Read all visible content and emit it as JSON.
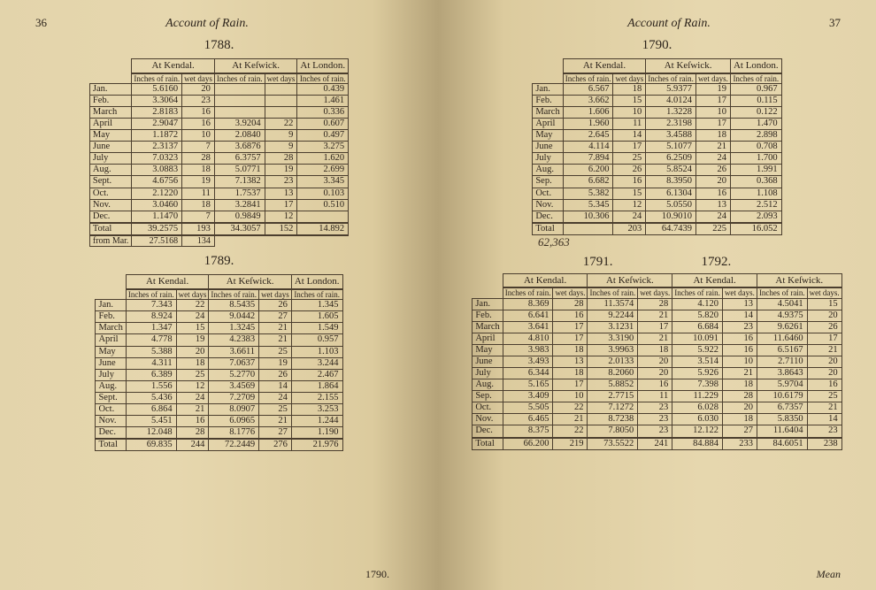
{
  "running_head": "Account of Rain.",
  "page_left_num": "36",
  "page_right_num": "37",
  "foot_left": "1790.",
  "foot_right": "Mean",
  "months": [
    "Jan.",
    "Feb.",
    "March",
    "April",
    "May",
    "June",
    "July",
    "Aug.",
    "Sept.",
    "Oct.",
    "Nov.",
    "Dec."
  ],
  "months_b": [
    "Jan.",
    "Feb.",
    "March",
    "April",
    "May",
    "June",
    "July",
    "Aug.",
    "Sep.",
    "Oct.",
    "Nov.",
    "Dec."
  ],
  "locs": {
    "kendal": "At Kendal.",
    "keswick": "At Keſwick.",
    "london": "At London."
  },
  "cols": {
    "rain": "Inches of rain.",
    "wet": "wet days",
    "rain2": "Inches of rain.",
    "wet2": "wet days.",
    "rain_s": "Inches of\nrain.",
    "wet_s": "wet\ndays."
  },
  "total_label": "Total",
  "from_mar": "from Mar.",
  "y1788": {
    "year": "1788.",
    "rows": [
      [
        "5.6160",
        "20",
        "",
        "",
        "0.439"
      ],
      [
        "3.3064",
        "23",
        "",
        "",
        "1.461"
      ],
      [
        "2.8183",
        "16",
        "",
        "",
        "0.336"
      ],
      [
        "2.9047",
        "16",
        "3.9204",
        "22",
        "0.607"
      ],
      [
        "1.1872",
        "10",
        "2.0840",
        "9",
        "0.497"
      ],
      [
        "2.3137",
        "7",
        "3.6876",
        "9",
        "3.275"
      ],
      [
        "7.0323",
        "28",
        "6.3757",
        "28",
        "1.620"
      ],
      [
        "3.0883",
        "18",
        "5.0771",
        "19",
        "2.699"
      ],
      [
        "4.6756",
        "19",
        "7.1382",
        "23",
        "3.345"
      ],
      [
        "2.1220",
        "11",
        "1.7537",
        "13",
        "0.103"
      ],
      [
        "3.0460",
        "18",
        "3.2841",
        "17",
        "0.510"
      ],
      [
        "1.1470",
        "7",
        "0.9849",
        "12",
        ""
      ]
    ],
    "total": [
      "39.2575",
      "193",
      "34.3057",
      "152",
      "14.892"
    ],
    "extra": [
      "27.5168",
      "134"
    ]
  },
  "y1789": {
    "year": "1789.",
    "rows": [
      [
        "7.343",
        "22",
        "8.5435",
        "26",
        "1.345"
      ],
      [
        "8.924",
        "24",
        "9.0442",
        "27",
        "1.605"
      ],
      [
        "1.347",
        "15",
        "1.3245",
        "21",
        "1.549"
      ],
      [
        "4.778",
        "19",
        "4.2383",
        "21",
        "0.957"
      ],
      [
        "5.388",
        "20",
        "3.6611",
        "25",
        "1.103"
      ],
      [
        "4.311",
        "18",
        "7.0637",
        "19",
        "3.244"
      ],
      [
        "6.389",
        "25",
        "5.2770",
        "26",
        "2.467"
      ],
      [
        "1.556",
        "12",
        "3.4569",
        "14",
        "1.864"
      ],
      [
        "5.436",
        "24",
        "7.2709",
        "24",
        "2.155"
      ],
      [
        "6.864",
        "21",
        "8.0907",
        "25",
        "3.253"
      ],
      [
        "5.451",
        "16",
        "6.0965",
        "21",
        "1.244"
      ],
      [
        "12.048",
        "28",
        "8.1776",
        "27",
        "1.190"
      ]
    ],
    "total": [
      "69.835",
      "244",
      "72.2449",
      "276",
      "21.976"
    ]
  },
  "y1790": {
    "year": "1790.",
    "rows": [
      [
        "6.567",
        "18",
        "5.9377",
        "19",
        "0.967"
      ],
      [
        "3.662",
        "15",
        "4.0124",
        "17",
        "0.115"
      ],
      [
        "1.606",
        "10",
        "1.3228",
        "10",
        "0.122"
      ],
      [
        "1.960",
        "11",
        "2.3198",
        "17",
        "1.470"
      ],
      [
        "2.645",
        "14",
        "3.4588",
        "18",
        "2.898"
      ],
      [
        "4.114",
        "17",
        "5.1077",
        "21",
        "0.708"
      ],
      [
        "7.894",
        "25",
        "6.2509",
        "24",
        "1.700"
      ],
      [
        "6.200",
        "26",
        "5.8524",
        "26",
        "1.991"
      ],
      [
        "6.682",
        "16",
        "8.3950",
        "20",
        "0.368"
      ],
      [
        "5.382",
        "15",
        "6.1304",
        "16",
        "1.108"
      ],
      [
        "5.345",
        "12",
        "5.0550",
        "13",
        "2.512"
      ],
      [
        "10.306",
        "24",
        "10.9010",
        "24",
        "2.093"
      ]
    ],
    "total": [
      "",
      "203",
      "64.7439",
      "225",
      "16.052"
    ],
    "ink": "62,363"
  },
  "y1791_92": {
    "year1": "1791.",
    "year2": "1792.",
    "rows": [
      [
        "8.369",
        "28",
        "11.3574",
        "28",
        "4.120",
        "13",
        "4.5041",
        "15"
      ],
      [
        "6.641",
        "16",
        "9.2244",
        "21",
        "5.820",
        "14",
        "4.9375",
        "20"
      ],
      [
        "3.641",
        "17",
        "3.1231",
        "17",
        "6.684",
        "23",
        "9.6261",
        "26"
      ],
      [
        "4.810",
        "17",
        "3.3190",
        "21",
        "10.091",
        "16",
        "11.6460",
        "17"
      ],
      [
        "3.983",
        "18",
        "3.9963",
        "18",
        "5.922",
        "16",
        "6.5167",
        "21"
      ],
      [
        "3.493",
        "13",
        "2.0133",
        "20",
        "3.514",
        "10",
        "2.7110",
        "20"
      ],
      [
        "6.344",
        "18",
        "8.2060",
        "20",
        "5.926",
        "21",
        "3.8643",
        "20"
      ],
      [
        "5.165",
        "17",
        "5.8852",
        "16",
        "7.398",
        "18",
        "5.9704",
        "16"
      ],
      [
        "3.409",
        "10",
        "2.7715",
        "11",
        "11.229",
        "28",
        "10.6179",
        "25"
      ],
      [
        "5.505",
        "22",
        "7.1272",
        "23",
        "6.028",
        "20",
        "6.7357",
        "21"
      ],
      [
        "6.465",
        "21",
        "8.7238",
        "23",
        "6.030",
        "18",
        "5.8350",
        "14"
      ],
      [
        "8.375",
        "22",
        "7.8050",
        "23",
        "12.122",
        "27",
        "11.6404",
        "23"
      ]
    ],
    "total": [
      "66.200",
      "219",
      "73.5522",
      "241",
      "84.884",
      "233",
      "84.6051",
      "238"
    ]
  }
}
